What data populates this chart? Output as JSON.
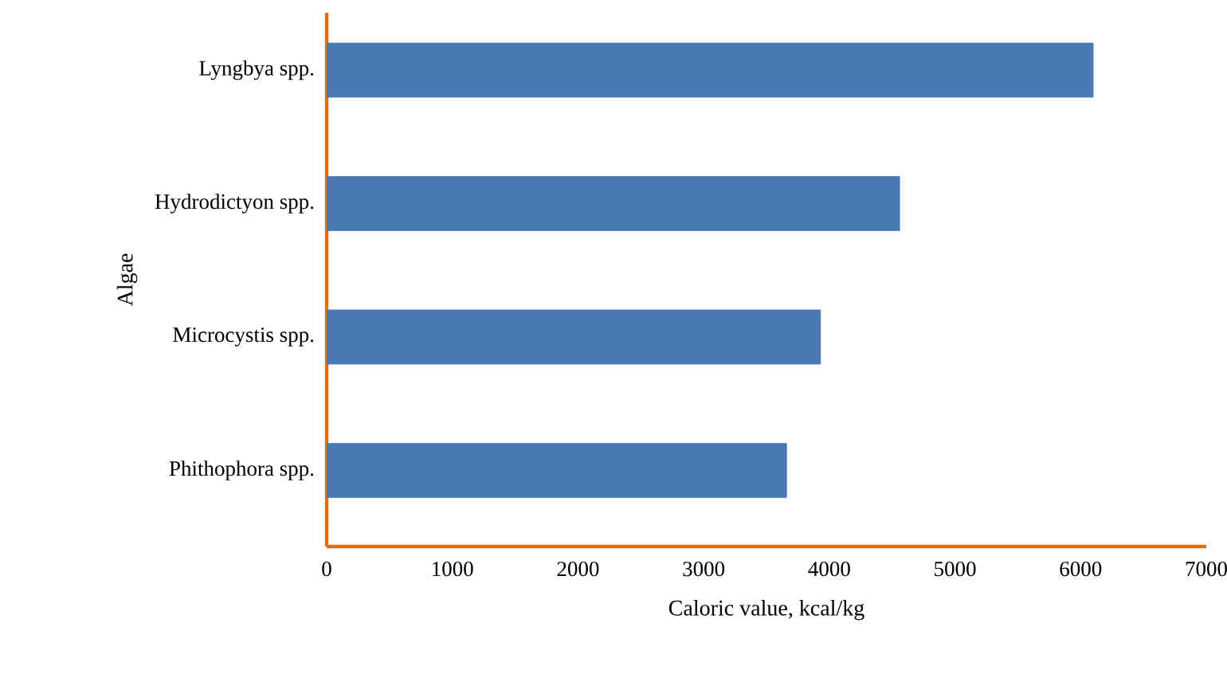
{
  "chart_data": {
    "type": "bar",
    "orientation": "horizontal",
    "xlabel": "Caloric value, kcal/kg",
    "ylabel": "Algae",
    "categories": [
      "Lyngbya spp.",
      "Hydrodictyon spp.",
      "Microcystis spp.",
      "Phithophora spp."
    ],
    "values": [
      6100,
      4560,
      3930,
      3660
    ],
    "color": "#4a7ab4",
    "xlim": [
      0,
      7000
    ],
    "xticks": [
      0,
      1000,
      2000,
      3000,
      4000,
      5000,
      6000,
      7000
    ]
  }
}
